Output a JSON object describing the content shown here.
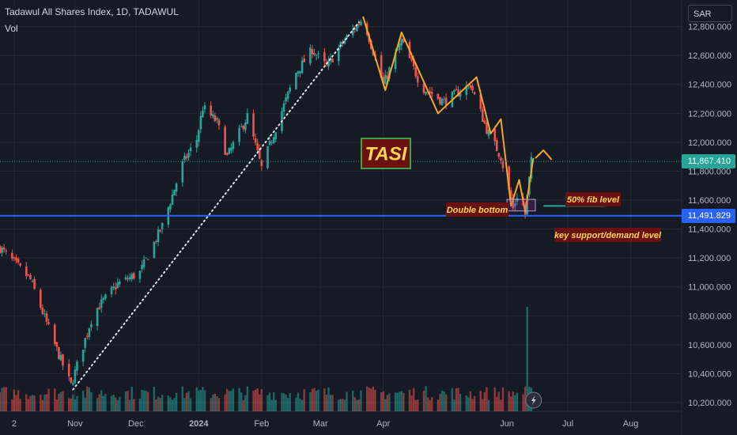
{
  "header": {
    "title": "Tadawul All Shares Index, 1D, TADAWUL",
    "volume_label": "Vol"
  },
  "currency": "SAR",
  "price_tags": {
    "last": "11,867.410",
    "support": "11,491.829"
  },
  "colors": {
    "up": "#26a69a",
    "down": "#ef5350",
    "background": "#161a25",
    "support_line": "#2962ff",
    "zigzag": "#f5a623",
    "grid": "#262a35",
    "annotation_bg": "#6b1010",
    "annotation_text": "#ffd54f",
    "fib_line": "#26a69a"
  },
  "chart_data": {
    "type": "candlestick",
    "title": "Tadawul All Shares Index, 1D, TADAWUL",
    "y_ticks": [
      10200,
      10400,
      10600,
      10800,
      11000,
      11200,
      11400,
      11600,
      11800,
      12000,
      12200,
      12400,
      12600,
      12800
    ],
    "y_tick_labels": [
      "10,200.000",
      "10,400.000",
      "10,600.000",
      "10,800.000",
      "11,000.000",
      "11,200.000",
      "11,400.000",
      "11,600.000",
      "11,800.000",
      "12,000.000",
      "12,200.000",
      "12,400.000",
      "12,600.000",
      "12,800.000"
    ],
    "ylim": [
      10140,
      12940
    ],
    "x_labels": [
      "2",
      "Nov",
      "Dec",
      "2024",
      "Feb",
      "Mar",
      "Apr",
      "Jun",
      "Jul",
      "Aug"
    ],
    "x_label_dates": [
      "2023-10-02",
      "2023-11-01",
      "2023-12-01",
      "2024-01-01",
      "2024-02-01",
      "2024-03-01",
      "2024-04-01",
      "2024-06-01",
      "2024-07-01",
      "2024-08-01"
    ],
    "price_path": [
      [
        "2023-09-25",
        11270
      ],
      [
        "2023-10-10",
        11050
      ],
      [
        "2023-10-22",
        10600
      ],
      [
        "2023-10-30",
        10320
      ],
      [
        "2023-11-10",
        10820
      ],
      [
        "2023-11-22",
        11020
      ],
      [
        "2023-12-03",
        11100
      ],
      [
        "2023-12-14",
        11420
      ],
      [
        "2023-12-24",
        11850
      ],
      [
        "2023-12-31",
        12020
      ],
      [
        "2024-01-03",
        12240
      ],
      [
        "2024-01-10",
        12140
      ],
      [
        "2024-01-15",
        11900
      ],
      [
        "2024-01-25",
        12180
      ],
      [
        "2024-02-01",
        11820
      ],
      [
        "2024-02-10",
        12180
      ],
      [
        "2024-02-18",
        12480
      ],
      [
        "2024-02-26",
        12640
      ],
      [
        "2024-03-04",
        12520
      ],
      [
        "2024-03-12",
        12690
      ],
      [
        "2024-03-22",
        12860
      ],
      [
        "2024-04-01",
        12400
      ],
      [
        "2024-04-10",
        12700
      ],
      [
        "2024-04-20",
        12380
      ],
      [
        "2024-05-01",
        12280
      ],
      [
        "2024-05-14",
        12400
      ],
      [
        "2024-05-22",
        12090
      ],
      [
        "2024-05-29",
        11900
      ],
      [
        "2024-06-04",
        11540
      ],
      [
        "2024-06-07",
        11680
      ],
      [
        "2024-06-10",
        11500
      ],
      [
        "2024-06-13",
        11867
      ]
    ],
    "volume_spike": {
      "date": "2024-06-11",
      "relative": 1.0
    },
    "support_level": 11491.829,
    "last_price": 11867.41,
    "trendline": {
      "from": [
        "2023-10-31",
        10290
      ],
      "to": [
        "2024-03-20",
        12830
      ],
      "style": "dotted"
    },
    "zigzag": [
      [
        "2024-03-22",
        12870
      ],
      [
        "2024-04-02",
        12360
      ],
      [
        "2024-04-10",
        12760
      ],
      [
        "2024-04-28",
        12200
      ],
      [
        "2024-05-17",
        12450
      ],
      [
        "2024-05-24",
        12060
      ],
      [
        "2024-05-29",
        12160
      ],
      [
        "2024-06-03",
        11560
      ],
      [
        "2024-06-07",
        11740
      ],
      [
        "2024-06-10",
        11520
      ],
      [
        "2024-06-14",
        11890
      ]
    ],
    "projection_arrow": {
      "from": [
        "2024-06-15",
        11890
      ],
      "peak": [
        "2024-06-19",
        11945
      ],
      "to": [
        "2024-06-23",
        11880
      ]
    },
    "double_bottom_box": {
      "from_date": "2024-06-01",
      "to_date": "2024-06-15",
      "low": 11525,
      "high": 11605
    },
    "fib_line": {
      "from_date": "2024-06-19",
      "to_date": "2024-07-19",
      "level": 11560
    },
    "annotations": {
      "watermark": "TASI",
      "double_bottom": "Double bottom",
      "fib": "50% fib level",
      "support": "key support/demand level"
    }
  }
}
